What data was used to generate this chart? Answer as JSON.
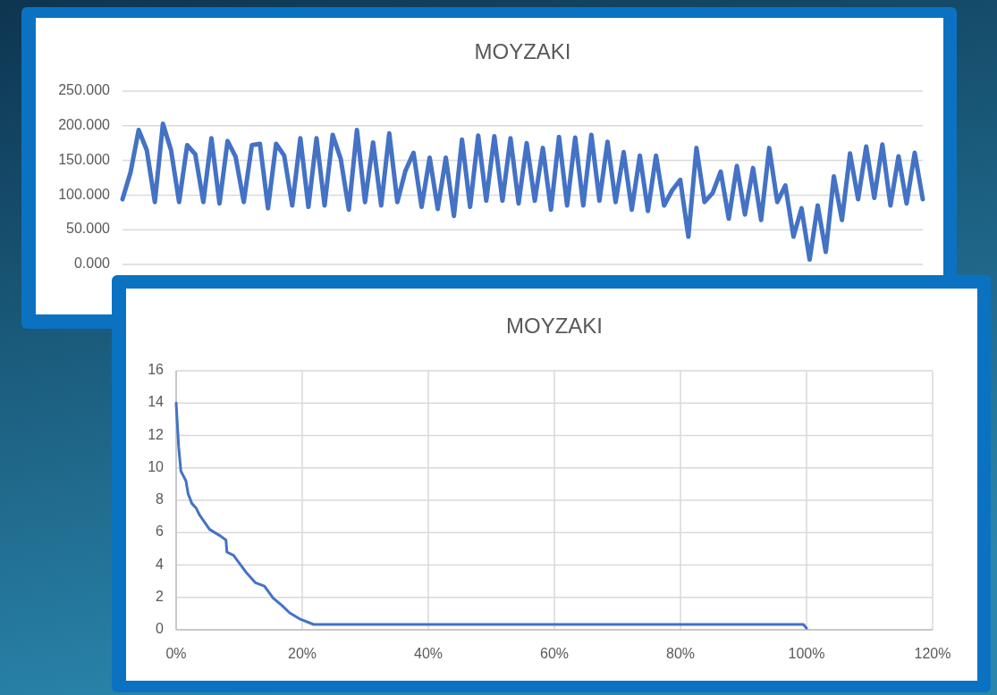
{
  "chart_data": [
    {
      "type": "line",
      "title": "MOYZAKI",
      "categories": [
        null,
        null,
        null,
        null,
        null,
        null,
        null,
        null,
        null,
        null,
        null,
        null,
        null,
        null,
        null,
        null,
        null,
        null,
        null,
        null,
        null,
        null,
        null,
        null,
        null,
        null,
        null,
        null,
        null,
        null,
        null,
        null,
        null,
        null,
        null,
        null,
        null,
        null,
        null,
        null,
        null,
        null,
        null,
        null,
        null,
        null,
        null,
        null,
        null,
        null,
        null,
        null,
        null,
        null,
        null,
        null,
        null,
        null,
        null,
        null,
        null,
        null,
        null,
        null,
        null,
        null,
        null,
        null,
        null,
        null,
        null,
        null,
        null,
        null,
        null,
        null,
        null,
        null,
        null,
        null,
        null,
        null,
        null,
        null,
        null,
        null,
        null,
        null,
        null,
        null,
        null,
        null,
        null,
        null,
        null,
        null,
        null,
        null,
        null,
        null
      ],
      "series": [
        {
          "color": "#4472c4",
          "values": [
            94,
            133,
            194,
            165,
            90,
            203,
            165,
            90,
            172,
            159,
            90,
            182,
            88,
            178,
            155,
            90,
            172,
            174,
            81,
            174,
            157,
            85,
            182,
            83,
            182,
            85,
            187,
            152,
            79,
            194,
            90,
            176,
            85,
            189,
            90,
            135,
            161,
            83,
            154,
            80,
            154,
            70,
            180,
            83,
            186,
            92,
            185,
            92,
            182,
            88,
            175,
            92,
            168,
            79,
            184,
            85,
            183,
            85,
            187,
            92,
            177,
            90,
            162,
            79,
            157,
            77,
            157,
            85,
            107,
            122,
            40,
            168,
            90,
            103,
            134,
            66,
            142,
            72,
            139,
            64,
            168,
            90,
            114,
            40,
            81,
            7,
            85,
            18,
            127,
            64,
            160,
            94,
            170,
            96,
            173,
            85,
            156,
            88,
            161,
            94
          ]
        }
      ],
      "ylim": [
        0,
        250
      ],
      "yticks": [
        {
          "value": 0,
          "label": "0.000"
        },
        {
          "value": 50,
          "label": "50.000"
        },
        {
          "value": 100,
          "label": "100.000"
        },
        {
          "value": 150,
          "label": "150.000"
        },
        {
          "value": 200,
          "label": "200.000"
        },
        {
          "value": 250,
          "label": "250.000"
        }
      ],
      "grid": "y",
      "tick_labels": "y"
    },
    {
      "type": "line",
      "title": "MOYZAKI",
      "series": [
        {
          "color": "#4472c4",
          "x": [
            0,
            0.4,
            0.75,
            1.55,
            1.9,
            2.5,
            3.2,
            3.7,
            5.3,
            7,
            7.9,
            8.05,
            9.1,
            11.2,
            12.6,
            14,
            15.4,
            16.8,
            18,
            19.7,
            21.8,
            99.5,
            100
          ],
          "values": [
            14,
            11.3,
            9.8,
            9.2,
            8.4,
            7.8,
            7.5,
            7.1,
            6.2,
            5.8,
            5.55,
            4.8,
            4.6,
            3.5,
            2.9,
            2.7,
            1.95,
            1.5,
            1.05,
            0.65,
            0.33,
            0.33,
            0.1
          ]
        }
      ],
      "xlim": [
        0,
        120
      ],
      "xticks": [
        {
          "value": 0,
          "label": "0%"
        },
        {
          "value": 20,
          "label": "20%"
        },
        {
          "value": 40,
          "label": "40%"
        },
        {
          "value": 60,
          "label": "60%"
        },
        {
          "value": 80,
          "label": "80%"
        },
        {
          "value": 100,
          "label": "100%"
        },
        {
          "value": 120,
          "label": "120%"
        }
      ],
      "ylim": [
        0,
        16
      ],
      "yticks": [
        0,
        2,
        4,
        6,
        8,
        10,
        12,
        14,
        16
      ],
      "grid": true
    }
  ]
}
